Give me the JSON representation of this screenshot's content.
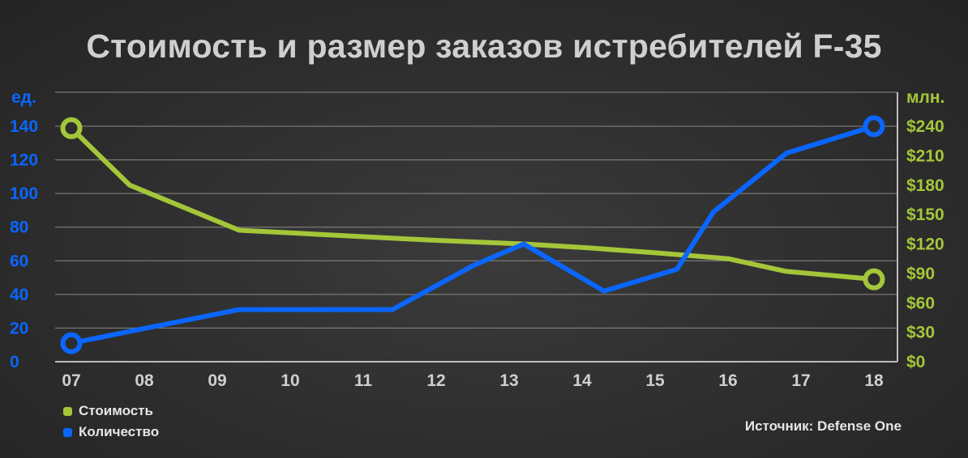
{
  "title": "Стоимость и размер заказов истребителей F-35",
  "source": "Источник: Defense One",
  "colors": {
    "cost": "#a4c639",
    "quantity": "#0a66ff",
    "grid": "#8a8a8a",
    "background": "#2e2e2e"
  },
  "chart_data": {
    "type": "line",
    "x": [
      "07",
      "08",
      "09",
      "10",
      "11",
      "12",
      "13",
      "14",
      "15",
      "16",
      "17",
      "18"
    ],
    "left_axis": {
      "label": "ед.",
      "ticks": [
        "0",
        "20",
        "40",
        "60",
        "80",
        "100",
        "120",
        "140"
      ],
      "ylim": [
        0,
        140
      ]
    },
    "right_axis": {
      "label": "млн.",
      "ticks": [
        "$0",
        "$30",
        "$60",
        "$90",
        "$120",
        "$150",
        "$180",
        "$210",
        "$240"
      ],
      "ylim": [
        0,
        240
      ]
    },
    "series": [
      {
        "name": "Стоимость",
        "axis": "right",
        "color": "#a4c639",
        "points": [
          [
            0,
            238
          ],
          [
            0.8,
            180
          ],
          [
            2.3,
            134
          ],
          [
            3.6,
            129
          ],
          [
            4.9,
            124
          ],
          [
            6.2,
            120
          ],
          [
            7.1,
            116
          ],
          [
            8.0,
            111
          ],
          [
            9.0,
            105
          ],
          [
            9.8,
            92
          ],
          [
            11.0,
            84
          ]
        ]
      },
      {
        "name": "Количество",
        "axis": "left",
        "color": "#0a66ff",
        "points": [
          [
            0,
            11
          ],
          [
            0.8,
            18
          ],
          [
            2.3,
            31
          ],
          [
            3.6,
            31
          ],
          [
            4.4,
            31
          ],
          [
            5.5,
            57
          ],
          [
            6.2,
            70
          ],
          [
            7.3,
            42
          ],
          [
            8.3,
            55
          ],
          [
            8.8,
            89
          ],
          [
            9.8,
            124
          ],
          [
            11.0,
            140
          ]
        ]
      }
    ],
    "grid": true,
    "legend_position": "bottom-left"
  }
}
